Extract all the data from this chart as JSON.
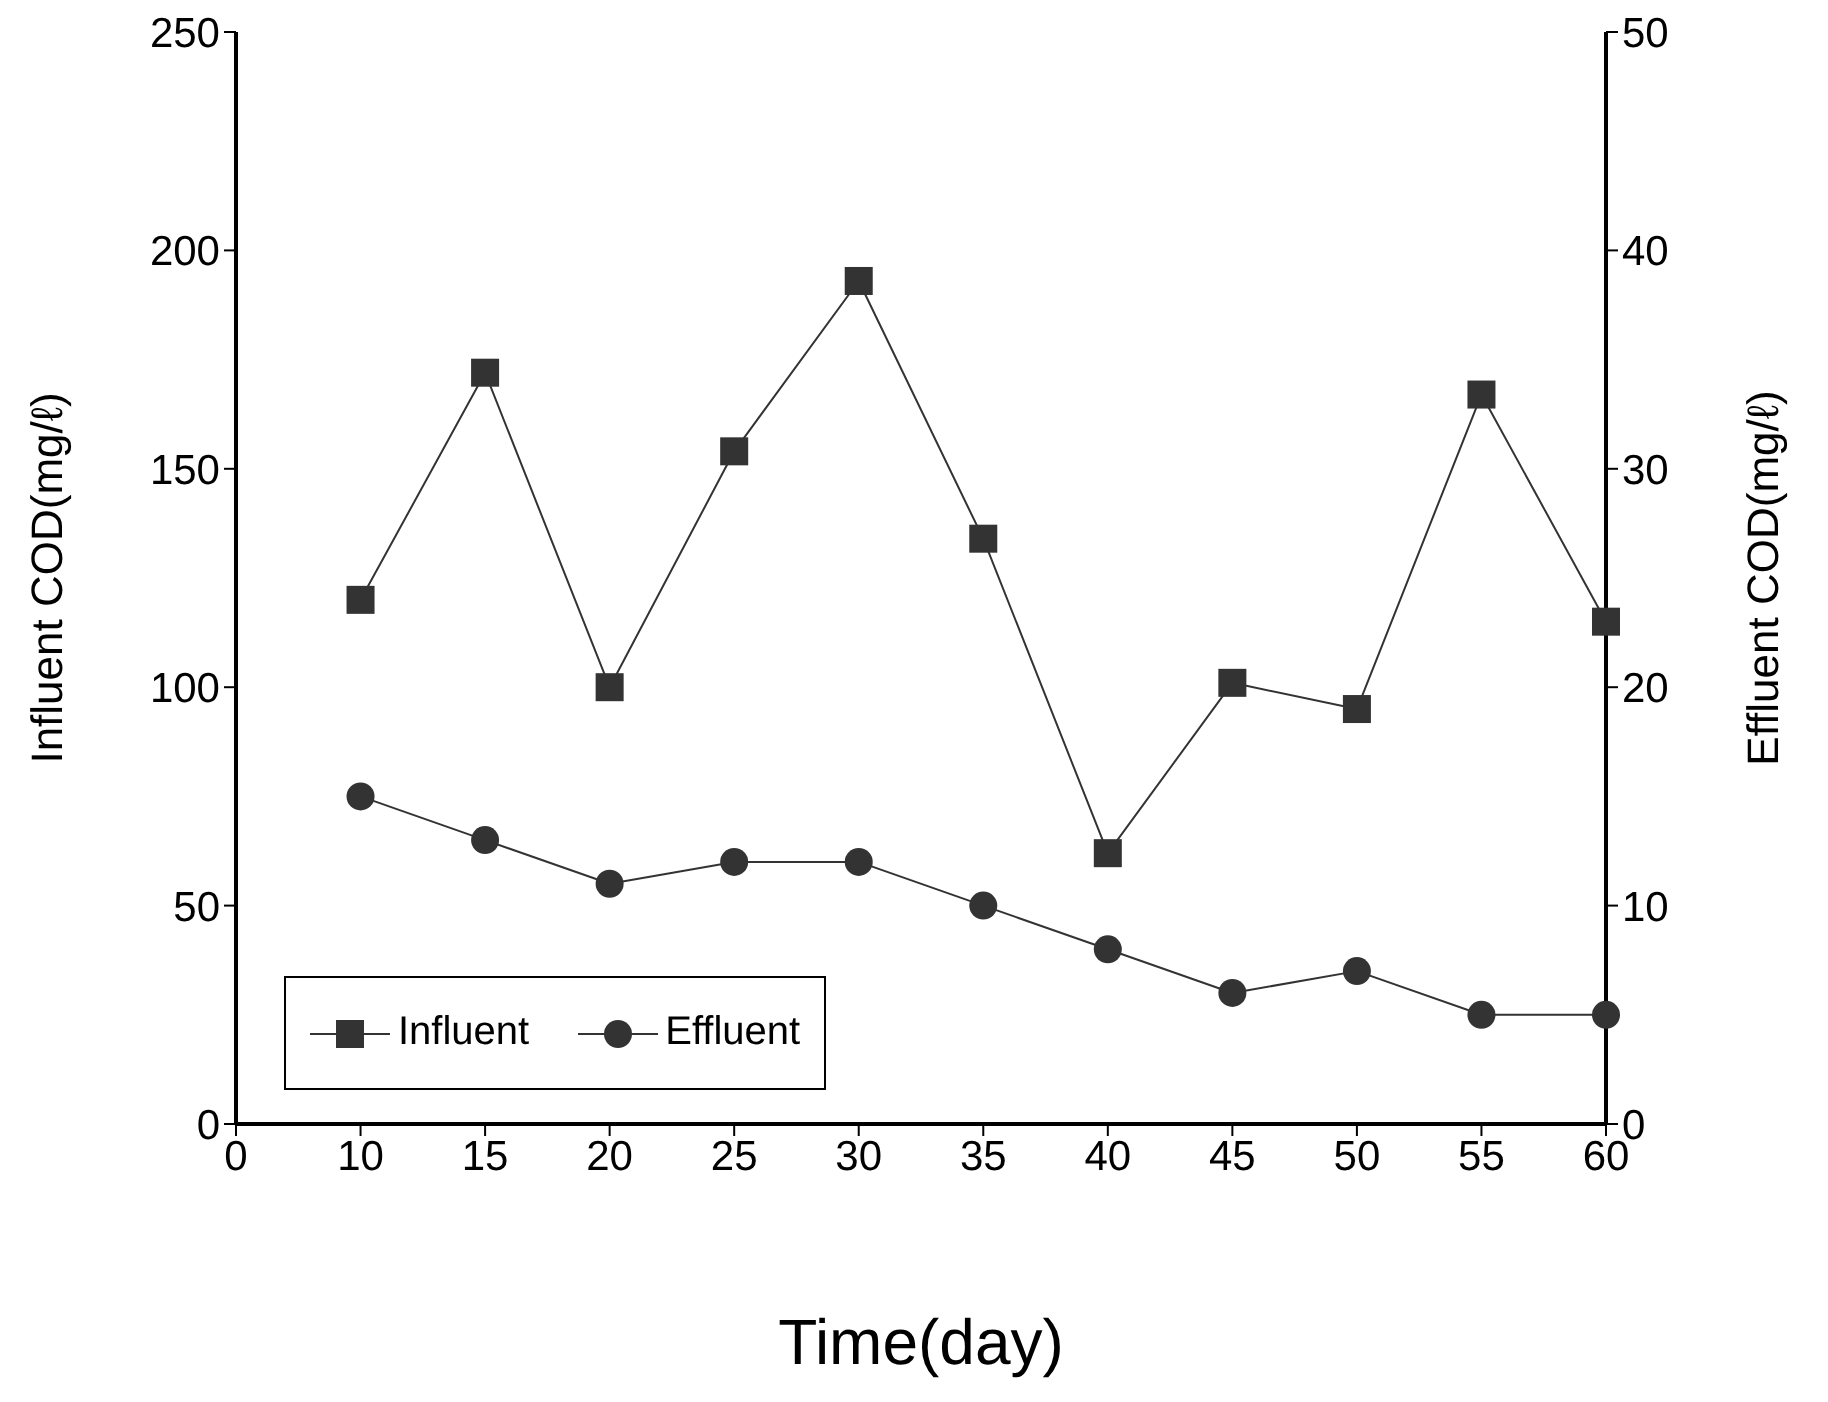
{
  "chart_data": {
    "type": "line",
    "xlabel": "Time(day)",
    "ylabel": "Influent COD(mg/ℓ)",
    "y2label": "Effluent COD(mg/ℓ)",
    "categories": [
      "0",
      "10",
      "15",
      "20",
      "25",
      "30",
      "35",
      "40",
      "45",
      "50",
      "55",
      "60"
    ],
    "series": [
      {
        "name": "Influent",
        "color": "#333333",
        "marker": "square",
        "values": [
          null,
          120,
          172,
          100,
          154,
          193,
          134,
          62,
          101,
          95,
          167,
          115
        ]
      },
      {
        "name": "Effluent",
        "color": "#333333",
        "marker": "circle",
        "axis": "y2",
        "values": [
          null,
          15,
          13,
          11,
          12,
          12,
          10,
          8,
          6,
          7,
          5,
          5
        ]
      }
    ],
    "ylim": [
      0,
      250
    ],
    "yticks": [
      0,
      50,
      100,
      150,
      200,
      250
    ],
    "y2lim": [
      0,
      50
    ],
    "y2ticks": [
      0,
      10,
      20,
      30,
      40,
      50
    ],
    "legend": "bottom left",
    "grid": false
  }
}
